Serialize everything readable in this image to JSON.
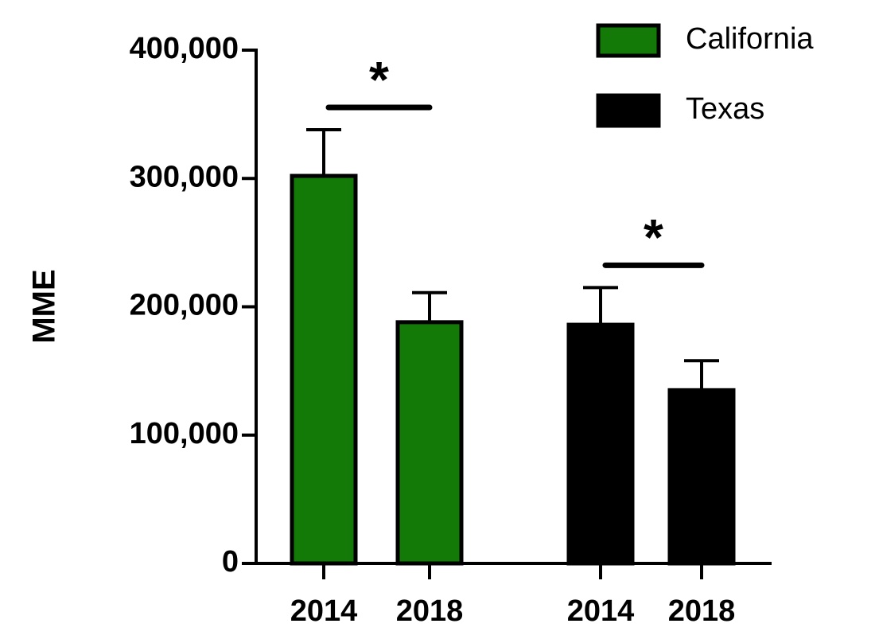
{
  "chart_data": {
    "type": "bar",
    "y_label": "MME",
    "categories": [
      "2014",
      "2018",
      "2014",
      "2018"
    ],
    "series": [
      {
        "name": "California",
        "color": "#137a07",
        "values": [
          302000,
          188000,
          null,
          null
        ],
        "errors": [
          36000,
          23000,
          null,
          null
        ]
      },
      {
        "name": "Texas",
        "color": "#000000",
        "values": [
          null,
          null,
          186000,
          135000
        ],
        "errors": [
          null,
          null,
          29000,
          23000
        ]
      }
    ],
    "annotations": [
      "*",
      "*"
    ],
    "ylim": [
      0,
      400000
    ],
    "yticks": [
      0,
      {
        "value": 100000,
        "label": "100,000"
      },
      {
        "value": 200000,
        "label": "200,000"
      },
      {
        "value": 300000,
        "label": "300,000"
      },
      {
        "value": 400000,
        "label": "400,000"
      }
    ]
  }
}
